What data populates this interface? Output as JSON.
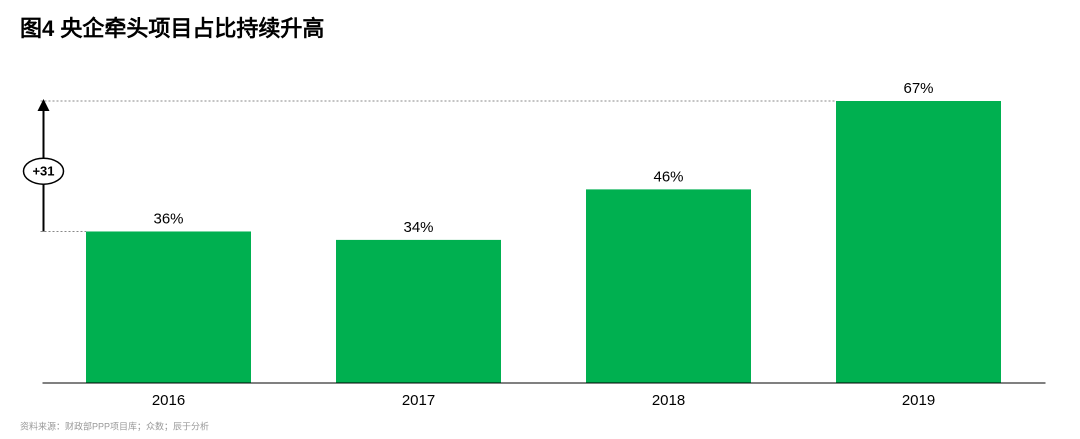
{
  "chart_data": {
    "type": "bar",
    "title": "图4 央企牵头项目占比持续升高",
    "categories": [
      "2016",
      "2017",
      "2018",
      "2019"
    ],
    "values": [
      36,
      34,
      46,
      67
    ],
    "value_labels": [
      "36%",
      "34%",
      "46%",
      "67%"
    ],
    "color": "#00b050",
    "ylim": [
      0,
      70
    ],
    "annotation": "+31",
    "source": "资料来源：财政部PPP项目库；众数；辰于分析"
  }
}
